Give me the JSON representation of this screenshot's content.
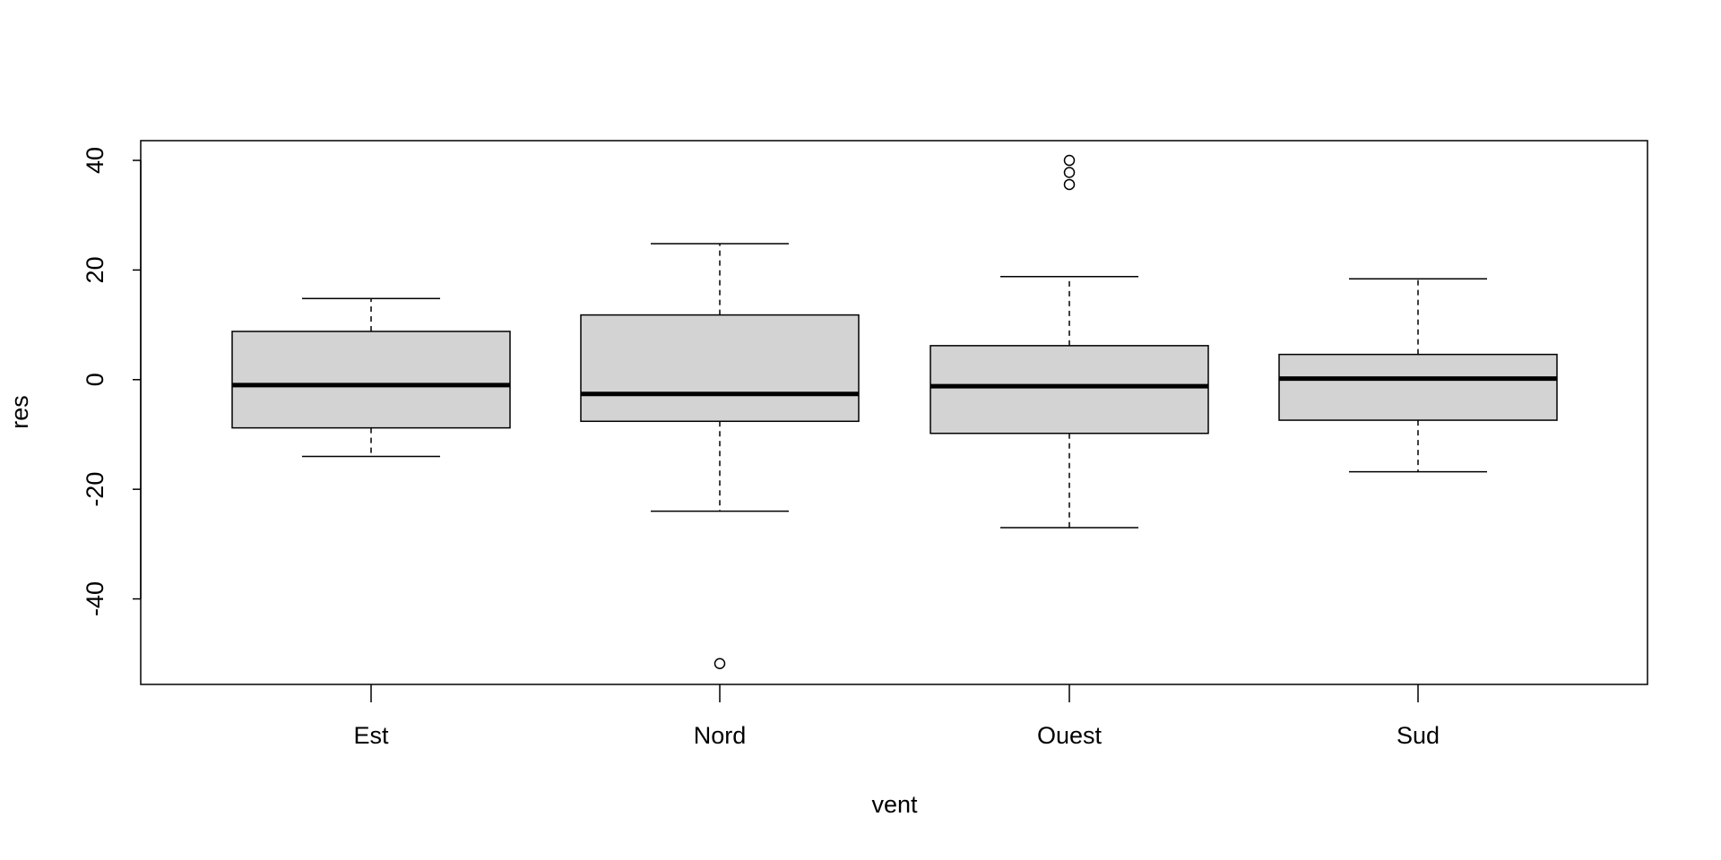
{
  "chart_data": {
    "type": "box",
    "x_label": "vent",
    "y_label": "res",
    "categories": [
      "Est",
      "Nord",
      "Ouest",
      "Sud"
    ],
    "boxes": [
      {
        "whisker_low": -14,
        "q1": -8.8,
        "median": -1,
        "q3": 8.8,
        "whisker_high": 14.8,
        "outliers": []
      },
      {
        "whisker_low": -24,
        "q1": -7.6,
        "median": -2.6,
        "q3": 11.8,
        "whisker_high": 24.8,
        "outliers": [
          -51.8
        ]
      },
      {
        "whisker_low": -27,
        "q1": -9.8,
        "median": -1.2,
        "q3": 6.2,
        "whisker_high": 18.8,
        "outliers": [
          40,
          37.8,
          35.6
        ]
      },
      {
        "whisker_low": -16.8,
        "q1": -7.4,
        "median": 0.2,
        "q3": 4.6,
        "whisker_high": 18.4,
        "outliers": []
      }
    ],
    "color": "#d3d3d3",
    "ylim": [
      -55.6,
      43.6
    ],
    "yticks": [
      -40,
      -20,
      0,
      20,
      40
    ]
  }
}
